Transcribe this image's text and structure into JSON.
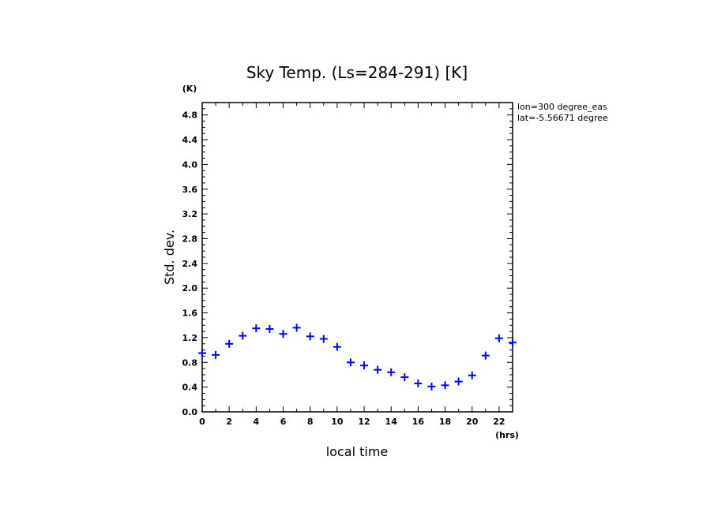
{
  "chart_data": {
    "type": "scatter",
    "title": "Sky Temp. (Ls=284-291) [K]",
    "xlabel": "local time",
    "ylabel": "Std. dev.",
    "x_unit": "(hrs)",
    "y_unit": "(K)",
    "xlim": [
      0,
      23
    ],
    "ylim": [
      0,
      5.0
    ],
    "x_ticks": [
      0,
      2,
      4,
      6,
      8,
      10,
      12,
      14,
      16,
      18,
      20,
      22
    ],
    "y_ticks": [
      0.0,
      0.4,
      0.8,
      1.2,
      1.6,
      2.0,
      2.4,
      2.8,
      3.2,
      3.6,
      4.0,
      4.4,
      4.8
    ],
    "y_tick_labels": [
      "0.0",
      "0.4",
      "0.8",
      "1.2",
      "1.6",
      "2.0",
      "2.4",
      "2.8",
      "3.2",
      "3.6",
      "4.0",
      "4.4",
      "4.8"
    ],
    "marker": "plus",
    "marker_color": "#0000ff",
    "grid": false,
    "info": [
      "lon=300 degree_eas",
      "lat=-5.56671 degree"
    ],
    "series": [
      {
        "x": [
          0,
          1,
          2,
          3,
          4,
          5,
          6,
          7,
          8,
          9,
          10,
          11,
          12,
          13,
          14,
          15,
          16,
          17,
          18,
          19,
          20,
          21,
          22,
          23
        ],
        "y": [
          0.95,
          0.92,
          1.1,
          1.23,
          1.35,
          1.34,
          1.26,
          1.36,
          1.22,
          1.18,
          1.05,
          0.8,
          0.75,
          0.68,
          0.64,
          0.56,
          0.46,
          0.41,
          0.43,
          0.49,
          0.59,
          0.91,
          1.19,
          1.12
        ]
      }
    ]
  }
}
